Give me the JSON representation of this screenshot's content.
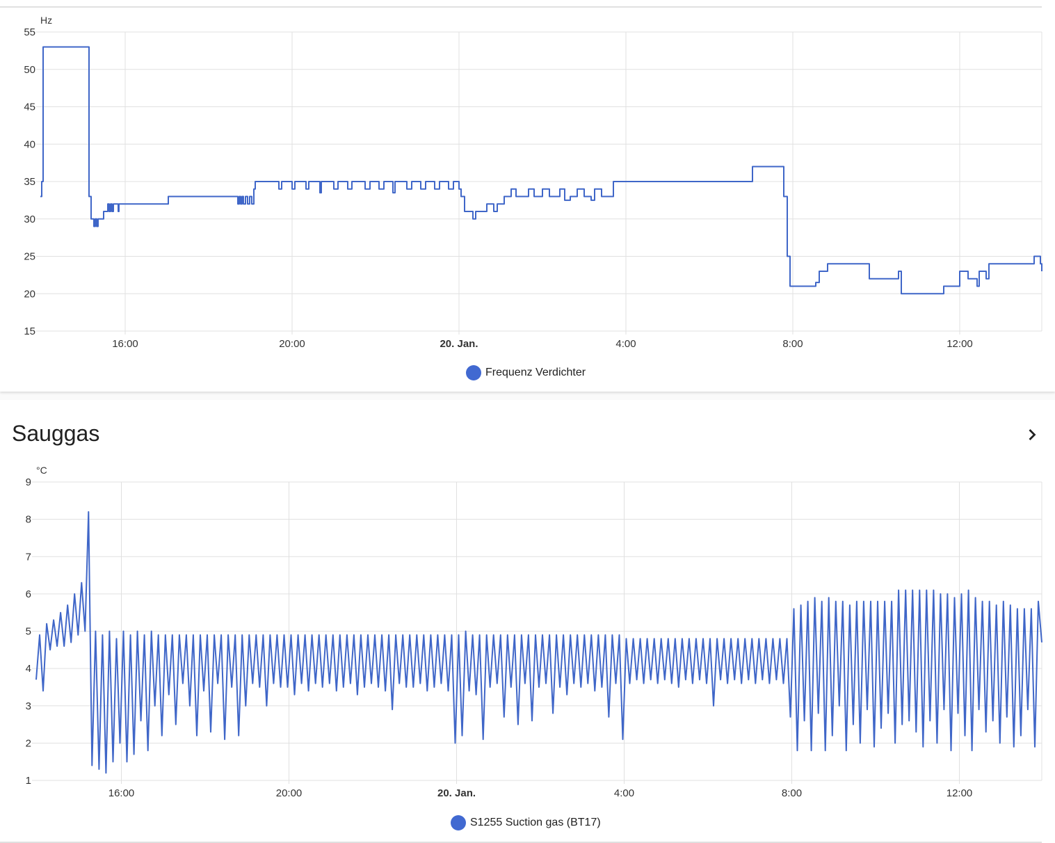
{
  "colors": {
    "series": "#3f66c8",
    "legend_dot": "#4169d1",
    "grid": "#e0e0e0"
  },
  "card1": {
    "chart_data": {
      "type": "line",
      "step": true,
      "title": "",
      "ylabel": "Hz",
      "ylim": [
        15,
        55
      ],
      "yticks": [
        15,
        20,
        25,
        30,
        35,
        40,
        45,
        50,
        55
      ],
      "xlim": [
        "19. Jan. 13:58",
        "20. Jan. 13:58"
      ],
      "xticks": [
        {
          "t": "19. Jan. 16:00",
          "label": "16:00"
        },
        {
          "t": "19. Jan. 20:00",
          "label": "20:00"
        },
        {
          "t": "20. Jan. 00:00",
          "label": "20. Jan.",
          "bold": true
        },
        {
          "t": "20. Jan. 04:00",
          "label": "4:00"
        },
        {
          "t": "20. Jan. 08:00",
          "label": "8:00"
        },
        {
          "t": "20. Jan. 12:00",
          "label": "12:00"
        }
      ],
      "grid": true,
      "legend": "bottom",
      "series": [
        {
          "name": "Frequenz Verdichter",
          "points": [
            [
              "19. Jan. 13:58",
              33
            ],
            [
              "19. Jan. 14:00",
              35
            ],
            [
              "19. Jan. 14:02",
              53
            ],
            [
              "19. Jan. 15:07",
              53
            ],
            [
              "19. Jan. 15:08",
              33
            ],
            [
              "19. Jan. 15:11",
              30
            ],
            [
              "19. Jan. 15:15",
              29
            ],
            [
              "19. Jan. 15:17",
              30
            ],
            [
              "19. Jan. 15:19",
              29
            ],
            [
              "19. Jan. 15:21",
              30
            ],
            [
              "19. Jan. 15:29",
              31
            ],
            [
              "19. Jan. 15:35",
              32
            ],
            [
              "19. Jan. 15:37",
              31
            ],
            [
              "19. Jan. 15:39",
              32
            ],
            [
              "19. Jan. 15:41",
              31
            ],
            [
              "19. Jan. 15:43",
              32
            ],
            [
              "19. Jan. 15:50",
              31
            ],
            [
              "19. Jan. 15:51",
              32
            ],
            [
              "19. Jan. 16:10",
              32
            ],
            [
              "19. Jan. 17:00",
              32
            ],
            [
              "19. Jan. 17:02",
              33
            ],
            [
              "19. Jan. 18:40",
              33
            ],
            [
              "19. Jan. 18:42",
              32
            ],
            [
              "19. Jan. 18:44",
              33
            ],
            [
              "19. Jan. 18:46",
              32
            ],
            [
              "19. Jan. 18:48",
              33
            ],
            [
              "19. Jan. 18:50",
              32
            ],
            [
              "19. Jan. 18:53",
              33
            ],
            [
              "19. Jan. 18:56",
              32
            ],
            [
              "19. Jan. 18:59",
              33
            ],
            [
              "19. Jan. 19:02",
              32
            ],
            [
              "19. Jan. 19:05",
              34
            ],
            [
              "19. Jan. 19:07",
              35
            ],
            [
              "19. Jan. 19:40",
              35
            ],
            [
              "19. Jan. 19:41",
              34
            ],
            [
              "19. Jan. 19:45",
              35
            ],
            [
              "19. Jan. 20:00",
              34
            ],
            [
              "19. Jan. 20:04",
              35
            ],
            [
              "19. Jan. 20:20",
              34
            ],
            [
              "19. Jan. 20:24",
              35
            ],
            [
              "19. Jan. 20:40",
              33.5
            ],
            [
              "19. Jan. 20:42",
              35
            ],
            [
              "19. Jan. 21:00",
              34
            ],
            [
              "19. Jan. 21:06",
              35
            ],
            [
              "19. Jan. 21:20",
              34
            ],
            [
              "19. Jan. 21:26",
              35
            ],
            [
              "19. Jan. 21:45",
              34
            ],
            [
              "19. Jan. 21:52",
              35
            ],
            [
              "19. Jan. 22:05",
              34
            ],
            [
              "19. Jan. 22:12",
              35
            ],
            [
              "19. Jan. 22:25",
              33.5
            ],
            [
              "19. Jan. 22:28",
              35
            ],
            [
              "19. Jan. 22:45",
              34
            ],
            [
              "19. Jan. 22:52",
              35
            ],
            [
              "19. Jan. 23:05",
              34
            ],
            [
              "19. Jan. 23:12",
              35
            ],
            [
              "19. Jan. 23:25",
              34
            ],
            [
              "19. Jan. 23:32",
              35
            ],
            [
              "19. Jan. 23:45",
              34
            ],
            [
              "19. Jan. 23:52",
              35
            ],
            [
              "20. Jan. 00:00",
              34
            ],
            [
              "20. Jan. 00:03",
              33
            ],
            [
              "20. Jan. 00:08",
              31
            ],
            [
              "20. Jan. 00:20",
              30
            ],
            [
              "20. Jan. 00:24",
              31
            ],
            [
              "20. Jan. 00:40",
              32
            ],
            [
              "20. Jan. 00:50",
              31
            ],
            [
              "20. Jan. 00:55",
              32
            ],
            [
              "20. Jan. 01:05",
              33
            ],
            [
              "20. Jan. 01:15",
              34
            ],
            [
              "20. Jan. 01:22",
              33
            ],
            [
              "20. Jan. 01:40",
              34
            ],
            [
              "20. Jan. 01:48",
              33
            ],
            [
              "20. Jan. 02:00",
              34
            ],
            [
              "20. Jan. 02:10",
              33
            ],
            [
              "20. Jan. 02:25",
              34
            ],
            [
              "20. Jan. 02:32",
              32.5
            ],
            [
              "20. Jan. 02:40",
              33
            ],
            [
              "20. Jan. 02:50",
              34
            ],
            [
              "20. Jan. 03:00",
              33
            ],
            [
              "20. Jan. 03:10",
              32.5
            ],
            [
              "20. Jan. 03:15",
              34
            ],
            [
              "20. Jan. 03:25",
              33
            ],
            [
              "20. Jan. 03:40",
              33
            ],
            [
              "20. Jan. 03:42",
              35
            ],
            [
              "20. Jan. 07:00",
              35
            ],
            [
              "20. Jan. 07:02",
              37
            ],
            [
              "20. Jan. 07:45",
              37
            ],
            [
              "20. Jan. 07:47",
              33
            ],
            [
              "20. Jan. 07:52",
              25
            ],
            [
              "20. Jan. 07:56",
              21
            ],
            [
              "20. Jan. 08:30",
              21
            ],
            [
              "20. Jan. 08:33",
              21.5
            ],
            [
              "20. Jan. 08:38",
              23
            ],
            [
              "20. Jan. 08:50",
              24
            ],
            [
              "20. Jan. 09:45",
              24
            ],
            [
              "20. Jan. 09:50",
              22
            ],
            [
              "20. Jan. 10:30",
              22
            ],
            [
              "20. Jan. 10:32",
              23
            ],
            [
              "20. Jan. 10:36",
              20
            ],
            [
              "20. Jan. 11:35",
              20
            ],
            [
              "20. Jan. 11:37",
              21
            ],
            [
              "20. Jan. 11:58",
              21
            ],
            [
              "20. Jan. 12:00",
              23
            ],
            [
              "20. Jan. 12:12",
              22
            ],
            [
              "20. Jan. 12:25",
              21
            ],
            [
              "20. Jan. 12:28",
              23
            ],
            [
              "20. Jan. 12:38",
              22
            ],
            [
              "20. Jan. 12:42",
              24
            ],
            [
              "20. Jan. 13:45",
              24
            ],
            [
              "20. Jan. 13:47",
              25
            ],
            [
              "20. Jan. 13:56",
              24
            ],
            [
              "20. Jan. 13:58",
              23
            ]
          ]
        }
      ]
    },
    "legend_label": "Frequenz Verdichter"
  },
  "card2": {
    "title": "Sauggas",
    "chart_data": {
      "type": "line",
      "title": "",
      "ylabel": "°C",
      "ylim": [
        1,
        9
      ],
      "yticks": [
        1,
        2,
        3,
        4,
        5,
        6,
        7,
        8,
        9
      ],
      "xlim": [
        "19. Jan. 13:58",
        "20. Jan. 13:58"
      ],
      "xticks": [
        {
          "t": "19. Jan. 16:00",
          "label": "16:00"
        },
        {
          "t": "19. Jan. 20:00",
          "label": "20:00"
        },
        {
          "t": "20. Jan. 00:00",
          "label": "20. Jan.",
          "bold": true
        },
        {
          "t": "20. Jan. 04:00",
          "label": "4:00"
        },
        {
          "t": "20. Jan. 08:00",
          "label": "8:00"
        },
        {
          "t": "20. Jan. 12:00",
          "label": "12:00"
        }
      ],
      "grid": true,
      "legend": "bottom",
      "series": [
        {
          "name": "S1255 Suction gas (BT17)",
          "start": "19. Jan. 13:58",
          "interval_min": 5,
          "values": [
            3.7,
            4.9,
            3.4,
            5.2,
            4.5,
            5.3,
            4.6,
            5.5,
            4.6,
            5.7,
            4.7,
            6.0,
            4.9,
            6.3,
            5.0,
            8.2,
            1.4,
            5.0,
            1.3,
            4.9,
            1.2,
            5.0,
            1.5,
            4.8,
            2.0,
            5.0,
            1.5,
            4.9,
            1.7,
            5.0,
            2.6,
            4.9,
            1.8,
            5.0,
            3.0,
            4.9,
            2.2,
            4.9,
            3.3,
            4.9,
            2.5,
            4.9,
            3.6,
            4.9,
            3.0,
            4.9,
            2.2,
            4.9,
            3.4,
            4.9,
            2.3,
            4.9,
            3.6,
            4.9,
            2.1,
            4.9,
            3.5,
            4.9,
            2.2,
            4.9,
            3.0,
            4.9,
            3.6,
            4.9,
            3.5,
            4.9,
            3.0,
            4.9,
            3.6,
            4.9,
            3.5,
            4.9,
            3.5,
            4.9,
            3.3,
            4.9,
            3.6,
            4.9,
            3.4,
            4.9,
            3.6,
            4.9,
            3.5,
            4.9,
            3.6,
            4.9,
            3.4,
            4.9,
            3.5,
            4.9,
            3.6,
            4.9,
            3.3,
            4.9,
            3.5,
            4.9,
            3.6,
            4.9,
            3.5,
            4.9,
            3.4,
            4.9,
            2.9,
            4.9,
            3.6,
            4.9,
            3.5,
            4.9,
            3.5,
            4.9,
            3.6,
            4.9,
            3.4,
            4.9,
            3.5,
            4.9,
            3.6,
            4.9,
            3.4,
            4.9,
            2.0,
            4.9,
            2.2,
            5.0,
            3.4,
            4.9,
            3.3,
            4.9,
            2.1,
            4.9,
            3.5,
            4.9,
            3.6,
            4.9,
            2.7,
            4.9,
            3.5,
            4.9,
            2.5,
            4.9,
            3.6,
            4.9,
            2.6,
            4.9,
            3.5,
            4.9,
            3.6,
            4.9,
            2.8,
            4.9,
            3.5,
            4.9,
            3.3,
            4.9,
            3.6,
            4.9,
            3.5,
            4.9,
            3.6,
            4.9,
            3.4,
            4.9,
            3.5,
            4.9,
            2.7,
            4.9,
            3.6,
            4.9,
            2.1,
            4.8,
            3.6,
            4.8,
            3.7,
            4.8,
            3.6,
            4.8,
            3.7,
            4.8,
            3.6,
            4.8,
            3.7,
            4.8,
            3.6,
            4.8,
            3.5,
            4.8,
            3.7,
            4.8,
            3.6,
            4.8,
            3.7,
            4.8,
            3.6,
            4.8,
            3.0,
            4.8,
            3.7,
            4.8,
            3.6,
            4.8,
            3.7,
            4.8,
            3.6,
            4.8,
            3.7,
            4.8,
            3.6,
            4.8,
            3.7,
            4.8,
            3.6,
            4.8,
            3.7,
            4.8,
            3.6,
            4.8,
            2.7,
            5.6,
            1.8,
            5.7,
            2.6,
            5.8,
            1.8,
            5.9,
            2.8,
            5.8,
            1.8,
            5.9,
            2.2,
            5.8,
            3.0,
            5.8,
            1.8,
            5.7,
            2.5,
            5.8,
            2.0,
            5.8,
            2.9,
            5.8,
            1.9,
            5.8,
            2.4,
            5.8,
            2.8,
            5.8,
            2.0,
            6.1,
            2.5,
            6.1,
            2.6,
            6.1,
            2.3,
            6.1,
            1.9,
            6.1,
            2.6,
            6.1,
            2.0,
            6.0,
            2.9,
            6.0,
            1.8,
            5.9,
            2.8,
            6.0,
            2.2,
            6.1,
            1.8,
            5.9,
            2.9,
            5.8,
            2.3,
            5.8,
            2.6,
            5.7,
            2.0,
            5.8,
            2.7,
            5.7,
            1.9,
            5.6,
            2.2,
            5.6,
            2.9,
            5.6,
            1.9,
            5.8,
            4.7
          ]
        }
      ]
    },
    "legend_label": "S1255 Suction gas (BT17)"
  }
}
